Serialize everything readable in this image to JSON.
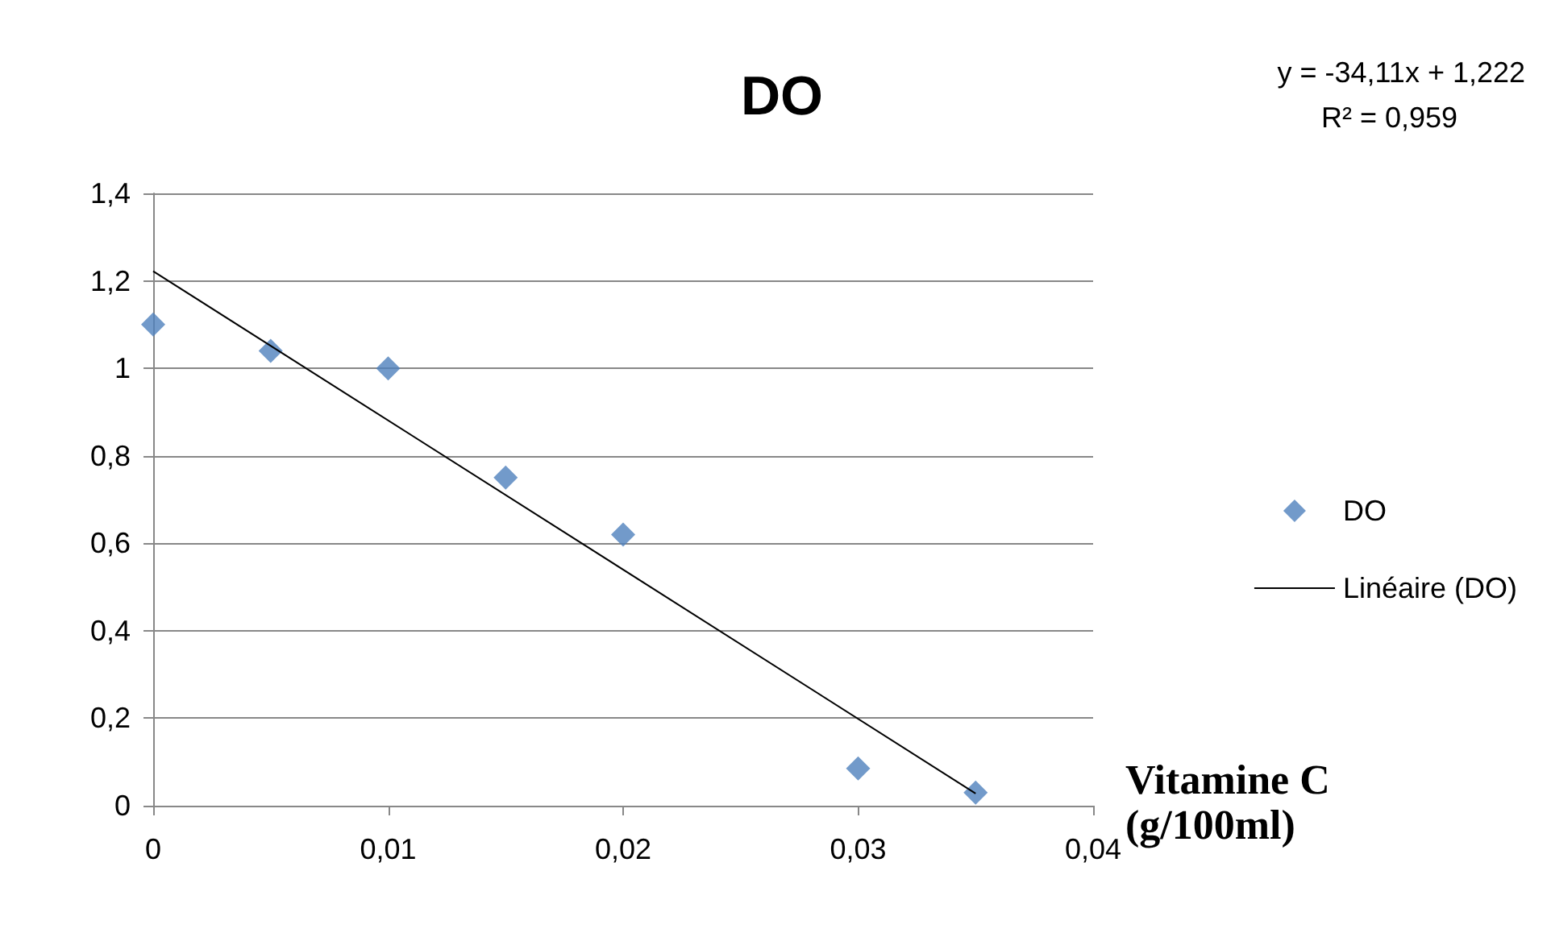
{
  "chart_data": {
    "type": "scatter",
    "title": "DO",
    "xlabel": "Vitamine C (g/100ml)",
    "annotations": [
      "y = -34,11x + 1,222",
      "R² = 0,959"
    ],
    "series": [
      {
        "name": "DO",
        "marker": "diamond",
        "color": "#4f81bd",
        "x": [
          0,
          0.005,
          0.01,
          0.015,
          0.02,
          0.03,
          0.035
        ],
        "values": [
          1.1,
          1.04,
          1.0,
          0.75,
          0.62,
          0.085,
          0.03
        ]
      },
      {
        "name": "Linéaire (DO)",
        "type": "line",
        "marker": "none",
        "color": "#000000",
        "x": [
          0,
          0.035
        ],
        "values": [
          1.222,
          0.028
        ]
      }
    ],
    "xlim": [
      0,
      0.04
    ],
    "xticks": [
      0,
      {
        "value": 0.01,
        "label": "0,01"
      },
      {
        "value": 0.02,
        "label": "0,02"
      },
      {
        "value": 0.03,
        "label": "0,03"
      },
      {
        "value": 0.04,
        "label": "0,04"
      }
    ],
    "ylim": [
      0,
      1.4
    ],
    "yticks": [
      0,
      {
        "value": 0.2,
        "label": "0,2"
      },
      {
        "value": 0.4,
        "label": "0,4"
      },
      {
        "value": 0.6,
        "label": "0,6"
      },
      {
        "value": 0.8,
        "label": "0,8"
      },
      1,
      {
        "value": 1.2,
        "label": "1,2"
      },
      {
        "value": 1.4,
        "label": "1,4"
      }
    ],
    "grid": "y",
    "legend": "right"
  }
}
